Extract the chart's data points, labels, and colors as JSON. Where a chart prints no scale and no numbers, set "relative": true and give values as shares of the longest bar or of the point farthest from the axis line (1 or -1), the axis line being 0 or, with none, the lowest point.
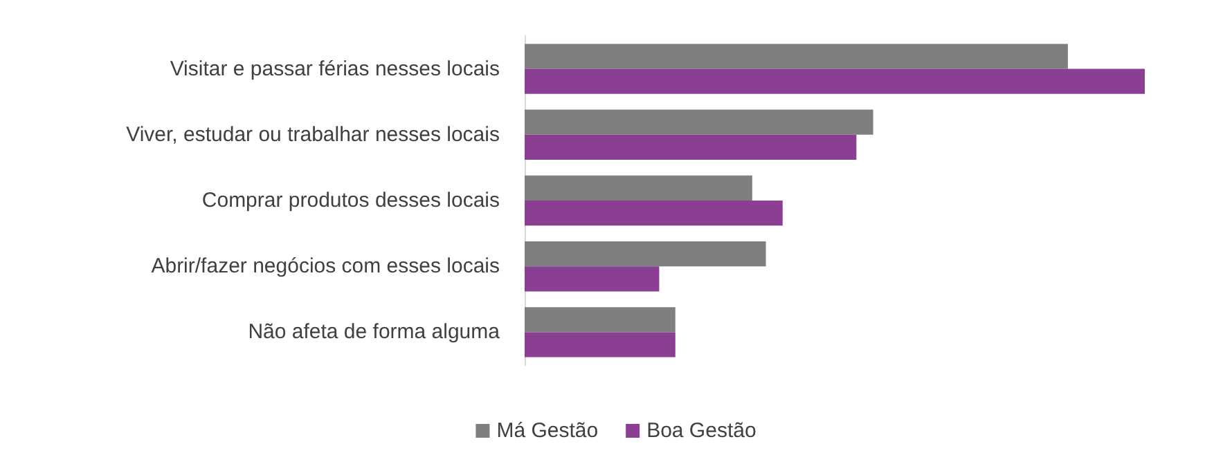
{
  "chart_data": {
    "type": "bar",
    "orientation": "horizontal",
    "relative": true,
    "legend": "bottom",
    "categories": [
      "Visitar e passar férias nesses locais",
      "Viver, estudar ou trabalhar nesses locais",
      "Comprar produtos desses locais",
      "Abrir/fazer negócios com esses locais",
      "Não afeta de forma alguma"
    ],
    "series": [
      {
        "name": "Má Gestão",
        "color": "#7f7f7f",
        "values": [
          0.876,
          0.562,
          0.367,
          0.389,
          0.243
        ]
      },
      {
        "name": "Boa Gestão",
        "color": "#8b3f93",
        "values": [
          1,
          0.535,
          0.416,
          0.217,
          0.243
        ]
      }
    ]
  }
}
